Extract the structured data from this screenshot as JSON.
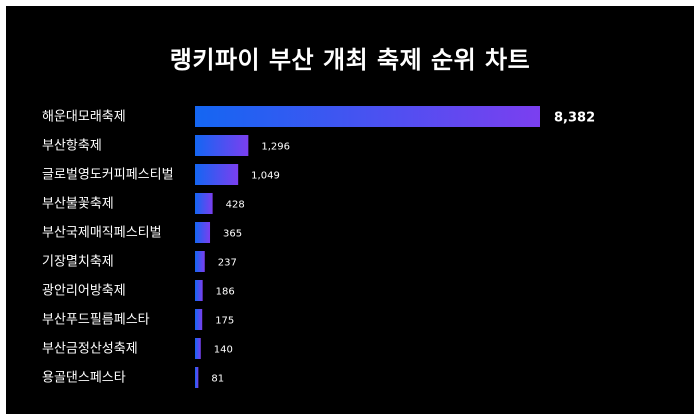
{
  "chart_data": {
    "type": "bar",
    "orientation": "horizontal",
    "title": "랭키파이 부산 개최 축제 순위 차트",
    "categories": [
      "해운대모래축제",
      "부산항축제",
      "글로벌영도커피페스티벌",
      "부산불꽃축제",
      "부산국제매직페스티벌",
      "기장멸치축제",
      "광안리어방축제",
      "부산푸드필름페스타",
      "부산금정산성축제",
      "용골댄스페스타"
    ],
    "values": [
      8382,
      1296,
      1049,
      428,
      365,
      237,
      186,
      175,
      140,
      81
    ],
    "value_labels": [
      "8,382",
      "1,296",
      "1,049",
      "428",
      "365",
      "237",
      "186",
      "175",
      "140",
      "81"
    ],
    "xlim": [
      0,
      8382
    ],
    "grid": false,
    "legend": "none",
    "colors": {
      "bar_start": "#1466f2",
      "bar_end": "#7b3ff0",
      "background": "#000000",
      "text": "#ffffff"
    }
  }
}
